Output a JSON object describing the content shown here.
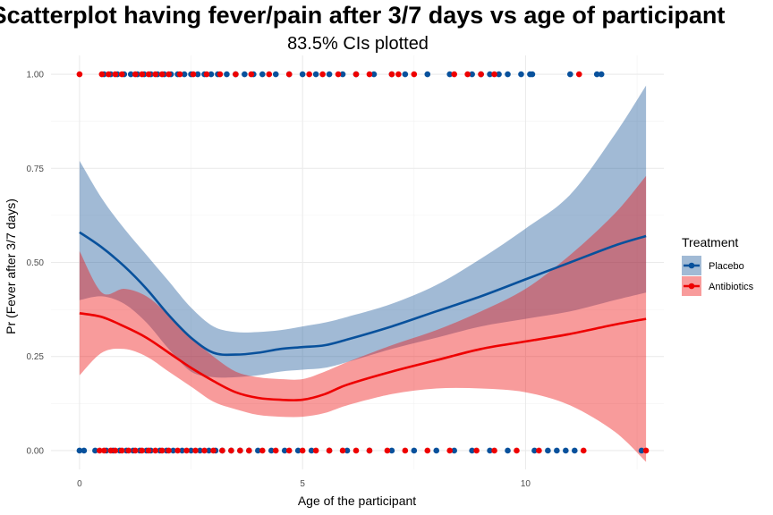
{
  "chart_data": {
    "type": "scatter",
    "title": "Scatterplot having fever/pain after 3/7 days vs age of participant",
    "subtitle": "83.5% CIs plotted",
    "xlabel": "Age of the participant",
    "ylabel": "Pr (Fever after 3/7 days)",
    "xlim": [
      -0.64,
      13.1
    ],
    "ylim": [
      -0.05,
      1.05
    ],
    "xticks": [
      0,
      5,
      10
    ],
    "xtick_labels": [
      "0",
      "5",
      "10"
    ],
    "yticks": [
      0,
      0.25,
      0.5,
      0.75,
      1.0
    ],
    "ytick_labels": [
      "0.00",
      "0.25",
      "0.50",
      "0.75",
      "1.00"
    ],
    "grid": true,
    "legend": {
      "title": "Treatment",
      "position": "right",
      "entries": [
        {
          "label": "Placebo",
          "color": "#08519c"
        },
        {
          "label": "Antibiotics",
          "color": "#ee0000"
        }
      ]
    },
    "series": [
      {
        "name": "Placebo",
        "color": "#08519c",
        "fit": {
          "x": [
            0,
            0.5,
            1,
            1.5,
            2,
            2.5,
            3,
            3.5,
            4,
            4.5,
            5,
            5.5,
            6,
            7,
            8,
            9,
            10,
            11,
            12,
            12.7
          ],
          "y": [
            0.58,
            0.54,
            0.49,
            0.43,
            0.36,
            0.3,
            0.26,
            0.255,
            0.26,
            0.27,
            0.275,
            0.28,
            0.295,
            0.33,
            0.37,
            0.41,
            0.455,
            0.5,
            0.545,
            0.57
          ],
          "lower": [
            0.4,
            0.41,
            0.39,
            0.34,
            0.27,
            0.21,
            0.195,
            0.195,
            0.2,
            0.21,
            0.215,
            0.22,
            0.235,
            0.27,
            0.3,
            0.33,
            0.35,
            0.37,
            0.4,
            0.42
          ],
          "upper": [
            0.77,
            0.67,
            0.59,
            0.52,
            0.45,
            0.38,
            0.33,
            0.315,
            0.315,
            0.32,
            0.33,
            0.34,
            0.355,
            0.39,
            0.44,
            0.51,
            0.59,
            0.68,
            0.84,
            0.97
          ]
        },
        "points_x_at_0": [
          0,
          0.1,
          0.35,
          0.6,
          0.75,
          0.9,
          1.05,
          1.2,
          1.35,
          1.5,
          1.6,
          1.8,
          1.95,
          2.1,
          2.3,
          2.5,
          2.7,
          2.9,
          3.05,
          3.2,
          3.4,
          3.6,
          3.8,
          4.0,
          4.3,
          4.6,
          4.9,
          5.2,
          5.6,
          6.0,
          6.5,
          7.0,
          7.5,
          8.0,
          8.4,
          8.8,
          9.2,
          9.6,
          10.2,
          10.5,
          10.7,
          10.9,
          11.1,
          12.6
        ],
        "points_x_at_1": [
          0.55,
          0.7,
          0.85,
          1.0,
          1.15,
          1.3,
          1.45,
          1.6,
          1.75,
          1.9,
          2.05,
          2.2,
          2.35,
          2.5,
          2.65,
          2.8,
          2.95,
          3.1,
          3.3,
          3.5,
          3.7,
          3.9,
          4.1,
          4.4,
          4.7,
          5.0,
          5.3,
          5.6,
          5.9,
          6.2,
          6.6,
          7.0,
          7.3,
          7.8,
          8.3,
          8.8,
          9.0,
          9.2,
          9.4,
          9.6,
          9.9,
          10.1,
          10.15,
          11.0,
          11.6,
          11.7
        ]
      },
      {
        "name": "Antibiotics",
        "color": "#ee0000",
        "fit": {
          "x": [
            0,
            0.5,
            1,
            1.5,
            2,
            2.5,
            3,
            3.5,
            4,
            4.5,
            5,
            5.5,
            6,
            7,
            8,
            9,
            10,
            11,
            12,
            12.7
          ],
          "y": [
            0.365,
            0.355,
            0.33,
            0.3,
            0.26,
            0.22,
            0.185,
            0.155,
            0.14,
            0.135,
            0.135,
            0.15,
            0.175,
            0.21,
            0.24,
            0.27,
            0.29,
            0.31,
            0.335,
            0.35
          ],
          "lower": [
            0.2,
            0.26,
            0.27,
            0.25,
            0.21,
            0.17,
            0.13,
            0.11,
            0.095,
            0.09,
            0.09,
            0.1,
            0.12,
            0.15,
            0.165,
            0.165,
            0.155,
            0.12,
            0.05,
            -0.03
          ],
          "upper": [
            0.53,
            0.42,
            0.43,
            0.41,
            0.36,
            0.3,
            0.25,
            0.21,
            0.195,
            0.19,
            0.19,
            0.21,
            0.235,
            0.28,
            0.32,
            0.37,
            0.43,
            0.52,
            0.63,
            0.73
          ]
        },
        "points_x_at_0": [
          0.45,
          0.55,
          0.7,
          0.8,
          0.95,
          1.1,
          1.25,
          1.4,
          1.55,
          1.7,
          1.85,
          2.0,
          2.2,
          2.4,
          2.6,
          2.8,
          3.0,
          3.2,
          3.4,
          3.6,
          3.8,
          4.1,
          4.4,
          4.7,
          5.0,
          5.3,
          5.6,
          5.9,
          6.2,
          6.5,
          6.9,
          7.3,
          7.8,
          8.3,
          8.9,
          9.3,
          9.8,
          10.3,
          11.3,
          12.7
        ],
        "points_x_at_1": [
          0,
          0.5,
          0.65,
          0.8,
          0.95,
          1.25,
          1.4,
          1.55,
          1.7,
          1.85,
          2.0,
          2.25,
          2.55,
          2.85,
          3.15,
          3.5,
          3.85,
          4.25,
          4.7,
          5.15,
          5.45,
          5.8,
          6.2,
          6.5,
          7.0,
          7.15,
          7.5,
          8.4,
          8.7,
          9.0,
          9.3,
          11.2
        ]
      }
    ]
  }
}
